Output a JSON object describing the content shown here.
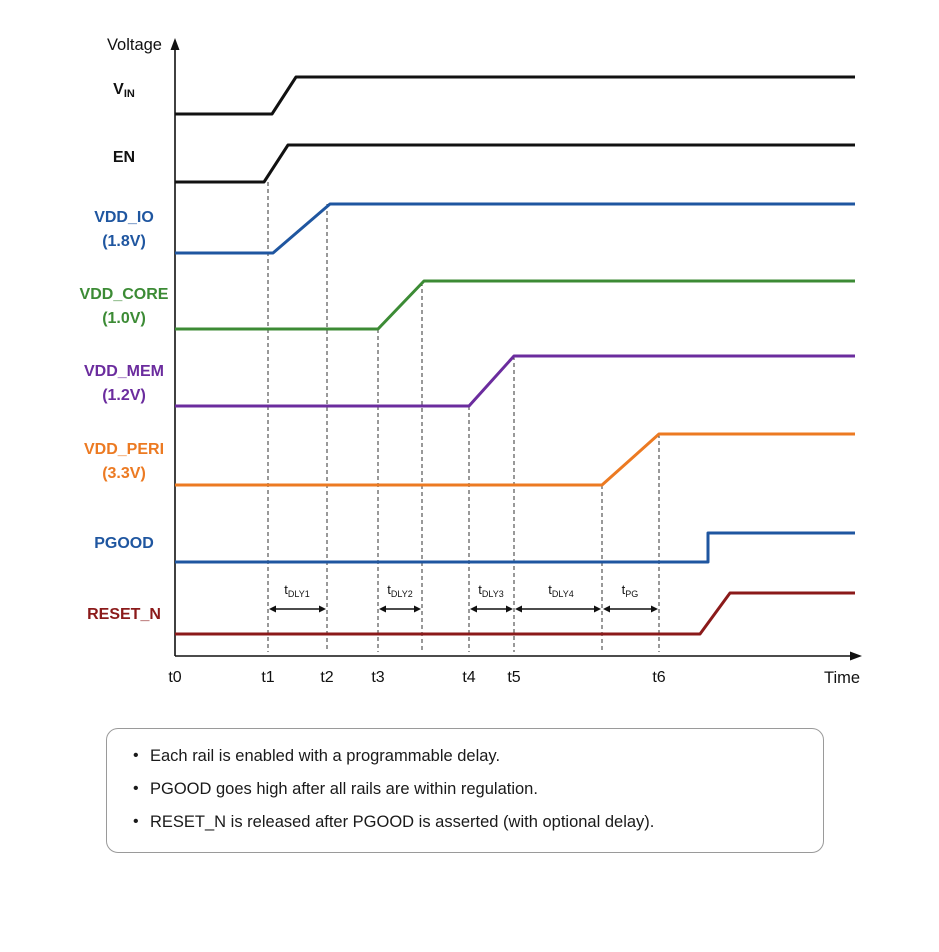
{
  "axes": {
    "y_label": "Voltage",
    "x_label": "Time",
    "x_ticks": [
      "t0",
      "t1",
      "t2",
      "t3",
      "t4",
      "t5",
      "t6"
    ]
  },
  "signals": [
    {
      "id": "vin",
      "label": "V",
      "subscript": "IN",
      "label_line2": "",
      "color": "#111111"
    },
    {
      "id": "en",
      "label": "EN",
      "subscript": "",
      "label_line2": "",
      "color": "#111111"
    },
    {
      "id": "vdd-io",
      "label": "VDD_IO",
      "subscript": "",
      "label_line2": "(1.8V)",
      "color": "#1f56a0"
    },
    {
      "id": "vdd-core",
      "label": "VDD_CORE",
      "subscript": "",
      "label_line2": "(1.0V)",
      "color": "#3c8b35"
    },
    {
      "id": "vdd-mem",
      "label": "VDD_MEM",
      "subscript": "",
      "label_line2": "(1.2V)",
      "color": "#6b2c9e"
    },
    {
      "id": "vdd-peri",
      "label": "VDD_PERI",
      "subscript": "",
      "label_line2": "(3.3V)",
      "color": "#ec7a22"
    },
    {
      "id": "pgood",
      "label": "PGOOD",
      "subscript": "",
      "label_line2": "",
      "color": "#1f56a0"
    },
    {
      "id": "reset-n",
      "label": "RESET_N",
      "subscript": "",
      "label_line2": "",
      "color": "#8b1a1a"
    }
  ],
  "delays": [
    {
      "id": "dly1",
      "main": "t",
      "sub": "DLY1"
    },
    {
      "id": "dly2",
      "main": "t",
      "sub": "DLY2"
    },
    {
      "id": "dly3",
      "main": "t",
      "sub": "DLY3"
    },
    {
      "id": "dly4",
      "main": "t",
      "sub": "DLY4"
    },
    {
      "id": "pg",
      "main": "t",
      "sub": "PG"
    }
  ],
  "notes": [
    "Each rail is enabled with a programmable delay.",
    "PGOOD goes high after all rails are within regulation.",
    "RESET_N is released after PGOOD is asserted (with optional delay)."
  ]
}
